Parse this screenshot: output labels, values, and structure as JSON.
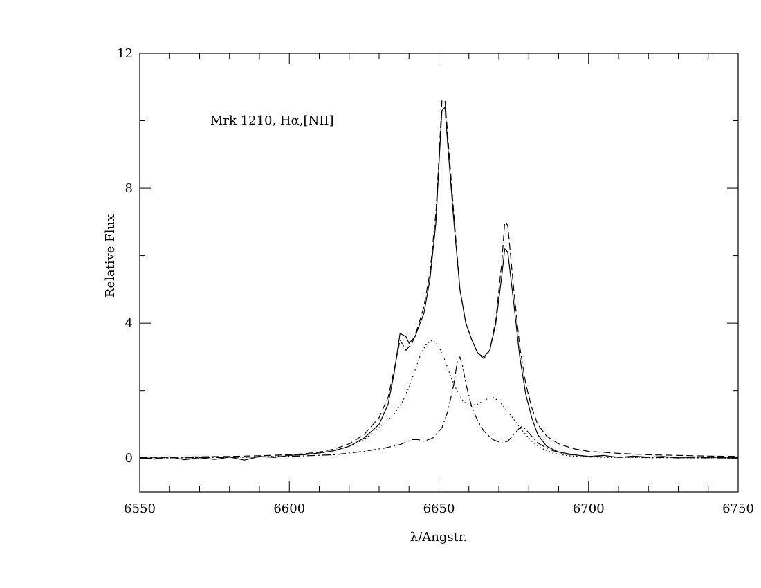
{
  "chart_data": {
    "type": "line",
    "annotation": "Mrk  1210,  Hα,[NII]",
    "xlabel": "λ/Angstr.",
    "ylabel": "Relative  Flux",
    "xlim": [
      6550,
      6750
    ],
    "ylim": [
      -1,
      12
    ],
    "x_ticks": [
      6550,
      6600,
      6650,
      6700,
      6750
    ],
    "y_ticks": [
      0,
      4,
      8,
      12
    ],
    "grid": false,
    "legend": "none",
    "series": [
      {
        "style": "solid",
        "points": [
          [
            6550,
            0.02
          ],
          [
            6555,
            -0.03
          ],
          [
            6560,
            0.04
          ],
          [
            6565,
            -0.05
          ],
          [
            6570,
            0.01
          ],
          [
            6575,
            -0.04
          ],
          [
            6580,
            0.03
          ],
          [
            6585,
            -0.06
          ],
          [
            6590,
            0.05
          ],
          [
            6595,
            0.02
          ],
          [
            6600,
            0.08
          ],
          [
            6605,
            0.1
          ],
          [
            6610,
            0.15
          ],
          [
            6615,
            0.22
          ],
          [
            6620,
            0.35
          ],
          [
            6625,
            0.6
          ],
          [
            6630,
            1.0
          ],
          [
            6633,
            1.6
          ],
          [
            6635,
            2.5
          ],
          [
            6637,
            3.7
          ],
          [
            6639,
            3.6
          ],
          [
            6640,
            3.4
          ],
          [
            6642,
            3.6
          ],
          [
            6645,
            4.3
          ],
          [
            6647,
            5.3
          ],
          [
            6649,
            7.0
          ],
          [
            6650,
            8.7
          ],
          [
            6651,
            10.3
          ],
          [
            6652,
            10.4
          ],
          [
            6653,
            9.2
          ],
          [
            6655,
            7.0
          ],
          [
            6657,
            5.0
          ],
          [
            6659,
            4.0
          ],
          [
            6661,
            3.5
          ],
          [
            6663,
            3.1
          ],
          [
            6665,
            3.0
          ],
          [
            6667,
            3.2
          ],
          [
            6669,
            4.0
          ],
          [
            6671,
            5.4
          ],
          [
            6672,
            6.2
          ],
          [
            6673,
            6.1
          ],
          [
            6675,
            4.6
          ],
          [
            6677,
            3.0
          ],
          [
            6679,
            1.9
          ],
          [
            6681,
            1.2
          ],
          [
            6683,
            0.7
          ],
          [
            6686,
            0.35
          ],
          [
            6690,
            0.18
          ],
          [
            6695,
            0.1
          ],
          [
            6700,
            0.05
          ],
          [
            6705,
            0.08
          ],
          [
            6710,
            0.02
          ],
          [
            6715,
            0.06
          ],
          [
            6720,
            0.03
          ],
          [
            6725,
            0.05
          ],
          [
            6730,
            0.0
          ],
          [
            6735,
            0.04
          ],
          [
            6740,
            0.02
          ],
          [
            6745,
            0.03
          ],
          [
            6750,
            0.01
          ]
        ]
      },
      {
        "style": "dashed",
        "points": [
          [
            6550,
            0.02
          ],
          [
            6560,
            0.03
          ],
          [
            6570,
            0.04
          ],
          [
            6580,
            0.05
          ],
          [
            6590,
            0.07
          ],
          [
            6600,
            0.1
          ],
          [
            6605,
            0.13
          ],
          [
            6610,
            0.18
          ],
          [
            6615,
            0.27
          ],
          [
            6620,
            0.42
          ],
          [
            6625,
            0.7
          ],
          [
            6630,
            1.2
          ],
          [
            6633,
            1.8
          ],
          [
            6635,
            2.6
          ],
          [
            6637,
            3.5
          ],
          [
            6639,
            3.2
          ],
          [
            6641,
            3.4
          ],
          [
            6643,
            3.9
          ],
          [
            6645,
            4.5
          ],
          [
            6647,
            5.5
          ],
          [
            6649,
            7.3
          ],
          [
            6650,
            8.9
          ],
          [
            6651,
            10.6
          ],
          [
            6652,
            10.6
          ],
          [
            6653,
            9.5
          ],
          [
            6655,
            7.2
          ],
          [
            6657,
            5.0
          ],
          [
            6659,
            4.0
          ],
          [
            6661,
            3.5
          ],
          [
            6663,
            3.1
          ],
          [
            6665,
            2.95
          ],
          [
            6667,
            3.2
          ],
          [
            6669,
            4.1
          ],
          [
            6671,
            5.8
          ],
          [
            6672,
            7.0
          ],
          [
            6673,
            6.9
          ],
          [
            6675,
            5.0
          ],
          [
            6677,
            3.3
          ],
          [
            6679,
            2.2
          ],
          [
            6681,
            1.5
          ],
          [
            6683,
            1.0
          ],
          [
            6686,
            0.65
          ],
          [
            6690,
            0.42
          ],
          [
            6695,
            0.28
          ],
          [
            6700,
            0.2
          ],
          [
            6710,
            0.14
          ],
          [
            6720,
            0.1
          ],
          [
            6730,
            0.08
          ],
          [
            6740,
            0.06
          ],
          [
            6750,
            0.05
          ]
        ]
      },
      {
        "style": "dotted",
        "points": [
          [
            6550,
            0.0
          ],
          [
            6570,
            0.01
          ],
          [
            6590,
            0.04
          ],
          [
            6600,
            0.07
          ],
          [
            6610,
            0.14
          ],
          [
            6615,
            0.22
          ],
          [
            6620,
            0.35
          ],
          [
            6625,
            0.55
          ],
          [
            6630,
            0.9
          ],
          [
            6635,
            1.3
          ],
          [
            6638,
            1.7
          ],
          [
            6640,
            2.1
          ],
          [
            6642,
            2.6
          ],
          [
            6644,
            3.1
          ],
          [
            6646,
            3.4
          ],
          [
            6648,
            3.5
          ],
          [
            6650,
            3.3
          ],
          [
            6652,
            2.9
          ],
          [
            6654,
            2.4
          ],
          [
            6656,
            2.0
          ],
          [
            6658,
            1.7
          ],
          [
            6660,
            1.55
          ],
          [
            6663,
            1.6
          ],
          [
            6666,
            1.75
          ],
          [
            6668,
            1.8
          ],
          [
            6670,
            1.7
          ],
          [
            6672,
            1.5
          ],
          [
            6675,
            1.15
          ],
          [
            6678,
            0.8
          ],
          [
            6681,
            0.5
          ],
          [
            6684,
            0.3
          ],
          [
            6688,
            0.15
          ],
          [
            6693,
            0.07
          ],
          [
            6700,
            0.03
          ],
          [
            6720,
            0.01
          ],
          [
            6750,
            0.0
          ]
        ]
      },
      {
        "style": "dashdot",
        "points": [
          [
            6550,
            0.0
          ],
          [
            6580,
            0.02
          ],
          [
            6600,
            0.05
          ],
          [
            6615,
            0.1
          ],
          [
            6625,
            0.2
          ],
          [
            6632,
            0.3
          ],
          [
            6637,
            0.4
          ],
          [
            6641,
            0.55
          ],
          [
            6643,
            0.55
          ],
          [
            6645,
            0.5
          ],
          [
            6648,
            0.6
          ],
          [
            6651,
            0.9
          ],
          [
            6653,
            1.4
          ],
          [
            6655,
            2.2
          ],
          [
            6656,
            2.8
          ],
          [
            6657,
            3.0
          ],
          [
            6658,
            2.7
          ],
          [
            6659,
            2.2
          ],
          [
            6661,
            1.5
          ],
          [
            6663,
            1.1
          ],
          [
            6665,
            0.8
          ],
          [
            6668,
            0.55
          ],
          [
            6671,
            0.45
          ],
          [
            6673,
            0.5
          ],
          [
            6675,
            0.7
          ],
          [
            6677,
            0.9
          ],
          [
            6678,
            0.95
          ],
          [
            6680,
            0.75
          ],
          [
            6683,
            0.45
          ],
          [
            6687,
            0.25
          ],
          [
            6692,
            0.12
          ],
          [
            6700,
            0.05
          ],
          [
            6720,
            0.02
          ],
          [
            6750,
            0.0
          ]
        ]
      }
    ]
  }
}
